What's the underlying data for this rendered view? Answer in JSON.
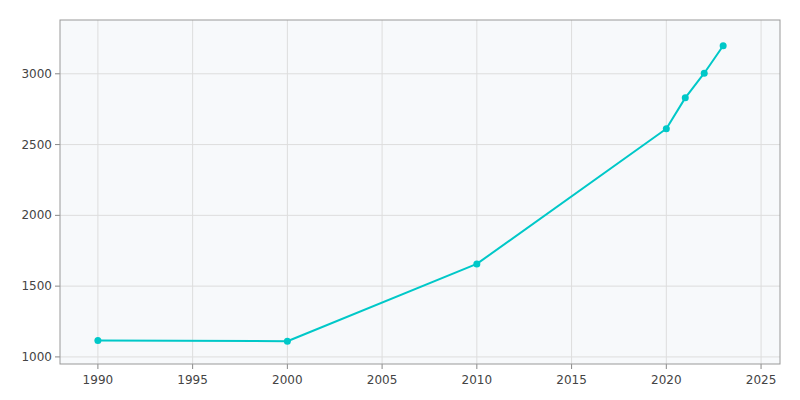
{
  "chart_data": {
    "type": "line",
    "x": [
      1990,
      2000,
      2010,
      2020,
      2021,
      2022,
      2023
    ],
    "values": [
      1116,
      1111,
      1657,
      2612,
      2830,
      3004,
      3198
    ],
    "color": "#00c8c8",
    "marker": "circle",
    "xlim": [
      1988,
      2026
    ],
    "ylim": [
      950,
      3380
    ],
    "xticks": [
      1990,
      1995,
      2000,
      2005,
      2010,
      2015,
      2020,
      2025
    ],
    "yticks": [
      1000,
      1500,
      2000,
      2500,
      3000
    ],
    "grid": true
  }
}
